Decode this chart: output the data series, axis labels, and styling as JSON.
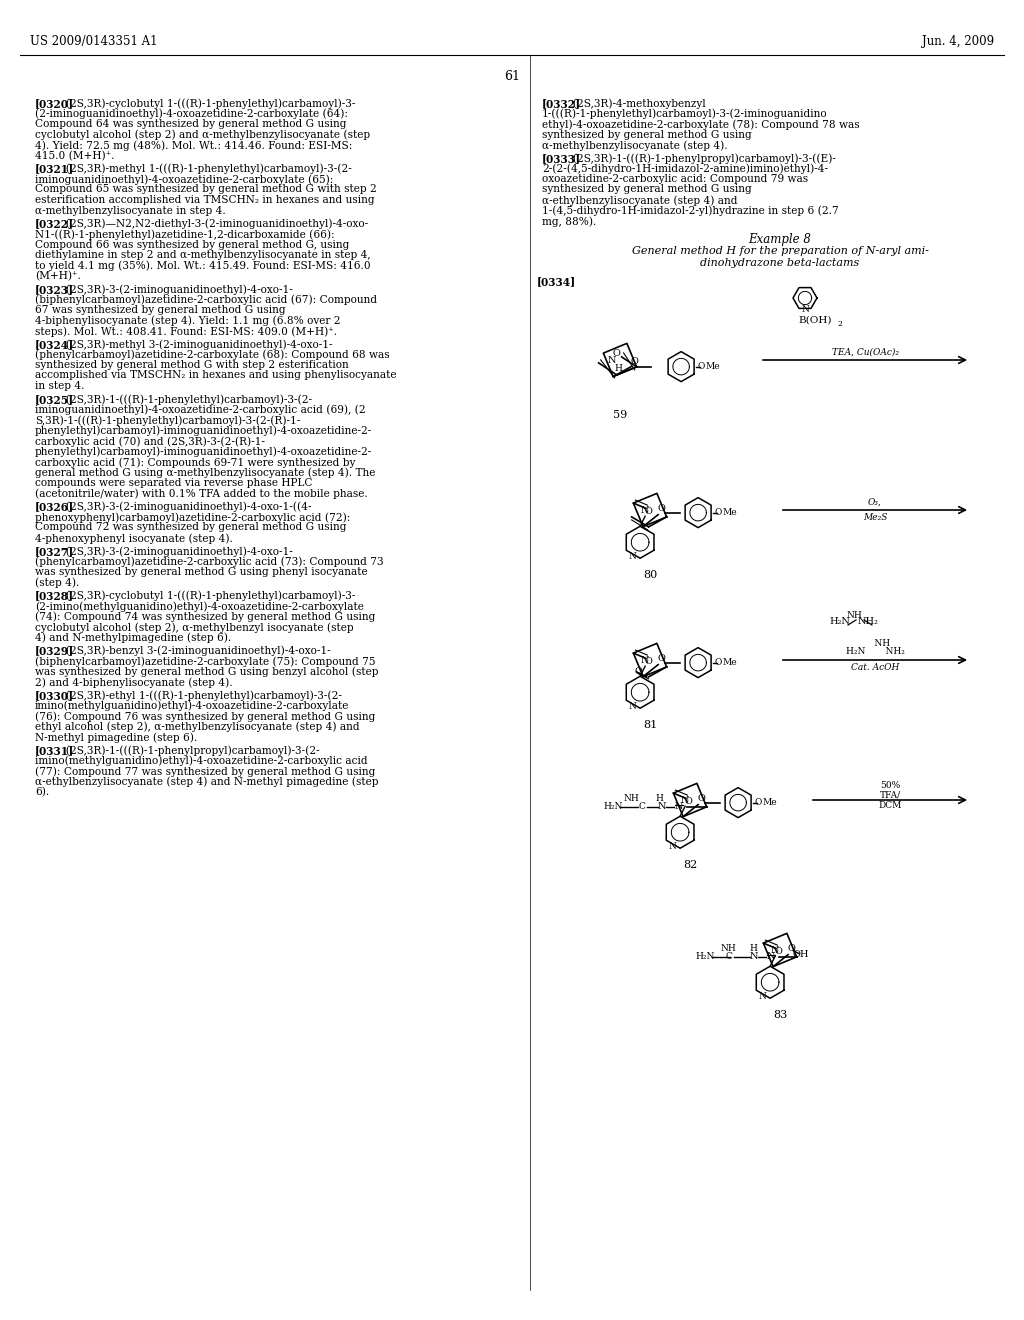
{
  "page_header_left": "US 2009/0143351 A1",
  "page_header_right": "Jun. 4, 2009",
  "page_number": "61",
  "background_color": "#ffffff",
  "text_color": "#000000",
  "left_column_text": [
    {
      "tag": "[0320]",
      "content": "(2S,3R)-cyclobutyl 1-(((R)-1-phenylethyl)carbamoyl)-3-(2-iminoguanidinoethyl)-4-oxoazetidine-2-carboxylate (64): Compound 64 was synthesized by general method G using cyclobutyl alcohol (step 2) and α-methylbenzylisocyanate (step 4). Yield: 72.5 mg (48%). Mol. Wt.: 414.46. Found: ESI-MS: 415.0 (M+H)⁺."
    },
    {
      "tag": "[0321]",
      "content": "(2S,3R)-methyl 1-(((R)-1-phenylethyl)carbamoyl)-3-(2-iminoguanidinoethyl)-4-oxoazetidine-2-carboxylate (65): Compound 65 was synthesized by general method G with step 2 esterification accomplished via TMSCHN₂ in hexanes and using α-methylbenzylisocyanate in step 4."
    },
    {
      "tag": "[0322]",
      "content": "(2S,3R)—N2,N2-diethyl-3-(2-iminoguanidinoethyl)-4-oxo-N1-((R)-1-phenylethyl)azetidine-1,2-dicarboxamide (66): Compound 66 was synthesized by general method G, using diethylamine in step 2 and α-methylbenzylisocyanate in step 4, to yield 4.1 mg (35%). Mol. Wt.: 415.49. Found: ESI-MS: 416.0 (M+H)⁺."
    },
    {
      "tag": "[0323]",
      "content": "(2S,3R)-3-(2-iminoguanidinoethyl)-4-oxo-1-(biphenylcarbamoyl)azetidine-2-carboxylic acid (67): Compound 67 was synthesized by general method G using 4-biphenylisocyanate (step 4). Yield: 1.1 mg (6.8% over 2 steps). Mol. Wt.: 408.41. Found: ESI-MS: 409.0 (M+H)⁺."
    },
    {
      "tag": "[0324]",
      "content": "(2S,3R)-methyl 3-(2-iminoguanidinoethyl)-4-oxo-1-(phenylcarbamoyl)azetidine-2-carboxylate (68): Compound 68 was synthesized by general method G with step 2 esterification accomplished via TMSCHN₂ in hexanes and using phenylisocyanate in step 4."
    },
    {
      "tag": "[0325]",
      "content": "(2S,3R)-1-(((R)-1-phenylethyl)carbamoyl)-3-(2-iminoguanidinoethyl)-4-oxoazetidine-2-carboxylic acid (69), (2S,3R)-1-(((R)-1-phenylethyl)carbamoyl)-3-(2-(R)-1-phenylethyl)carbamoyl)-iminoguanidinoethyl)-4-oxoazetidine-2-carboxylic acid (70) and (2S,3R)-3-(2-(R)-1-phenylethyl)carbamoyl)-iminoguanidinoethyl)-4-oxoazetidine-2-carboxylic acid (71): Compounds 69-71 were synthesized by general method G using α-methylbenzylisocyanate (step 4). The compounds were separated via reverse phase HPLC (acetonitrile/water) with 0.1% TFA added to the mobile phase."
    },
    {
      "tag": "[0326]",
      "content": "(2S,3R)-3-(2-iminoguanidinoethyl)-4-oxo-1-((4-phenoxyphenyl)carbamoyl)azetidine-2-carboxylic acid (72): Compound 72 was synthesized by general method G using 4-phenoxyphenyl isocyanate (step 4)."
    },
    {
      "tag": "[0327]",
      "content": "(2S,3R)-3-(2-iminoguanidinoethyl)-4-oxo-1-(phenylcarbamoyl)azetidine-2-carboxylic acid (73): Compound 73 was synthesized by general method G using phenyl isocyanate (step 4)."
    },
    {
      "tag": "[0328]",
      "content": "(2S,3R)-cyclobutyl 1-(((R)-1-phenylethyl)carbamoyl)-3-(2-imino(methylguanidino)ethyl)-4-oxoazetidine-2-carboxylate (74): Compound 74 was synthesized by general method G using cyclobutyl alcohol (step 2), α-methylbenzyl isocyanate (step 4) and N-methylpimagedine (step 6)."
    },
    {
      "tag": "[0329]",
      "content": "(2S,3R)-benzyl 3-(2-iminoguanidinoethyl)-4-oxo-1-(biphenylcarbamoyl)azetidine-2-carboxylate (75): Compound 75 was synthesized by general method G using benzyl alcohol (step 2) and 4-biphenylisocyanate (step 4)."
    },
    {
      "tag": "[0330]",
      "content": "(2S,3R)-ethyl 1-(((R)-1-phenylethyl)carbamoyl)-3-(2-imino(methylguanidino)ethyl)-4-oxoazetidine-2-carboxylate (76): Compound 76 was synthesized by general method G using ethyl alcohol (step 2), α-methylbenzylisocyanate (step 4) and N-methyl pimagedine (step 6)."
    },
    {
      "tag": "[0331]",
      "content": "(2S,3R)-1-(((R)-1-phenylpropyl)carbamoyl)-3-(2-imino(methylguanidino)ethyl)-4-oxoazetidine-2-carboxylic acid (77): Compound 77 was synthesized by general method G using α-ethylbenzylisocyanate (step 4) and N-methyl pimagedine (step 6)."
    }
  ],
  "right_column_text": [
    {
      "tag": "[0332]",
      "content": "(2S,3R)-4-methoxybenzyl 1-(((R)-1-phenylethyl)carbamoyl)-3-(2-iminoguanidino ethyl)-4-oxoazetidine-2-carboxylate (78): Compound 78 was synthesized by general method G using α-methylbenzylisocyanate (step 4)."
    },
    {
      "tag": "[0333]",
      "content": "(2S,3R)-1-(((R)-1-phenylpropyl)carbamoyl)-3-((E)-2-(2-(4,5-dihydro-1H-imidazol-2-amine)imino)ethyl)-4-oxoazetidine-2-carboxylic acid: Compound 79 was synthesized by general method G using α-ethylbenzylisocyanate (step 4) and 1-(4,5-dihydro-1H-imidazol-2-yl)hydrazine in step 6 (2.7 mg, 88%)."
    },
    {
      "tag": "example_header",
      "content": "Example 8"
    },
    {
      "tag": "example_title",
      "content": "General method H for the preparation of N-aryl ami-\ndinohydrazone beta-lactams"
    },
    {
      "tag": "[0334]",
      "content": ""
    }
  ],
  "fig_width": 10.24,
  "fig_height": 13.2,
  "dpi": 100
}
